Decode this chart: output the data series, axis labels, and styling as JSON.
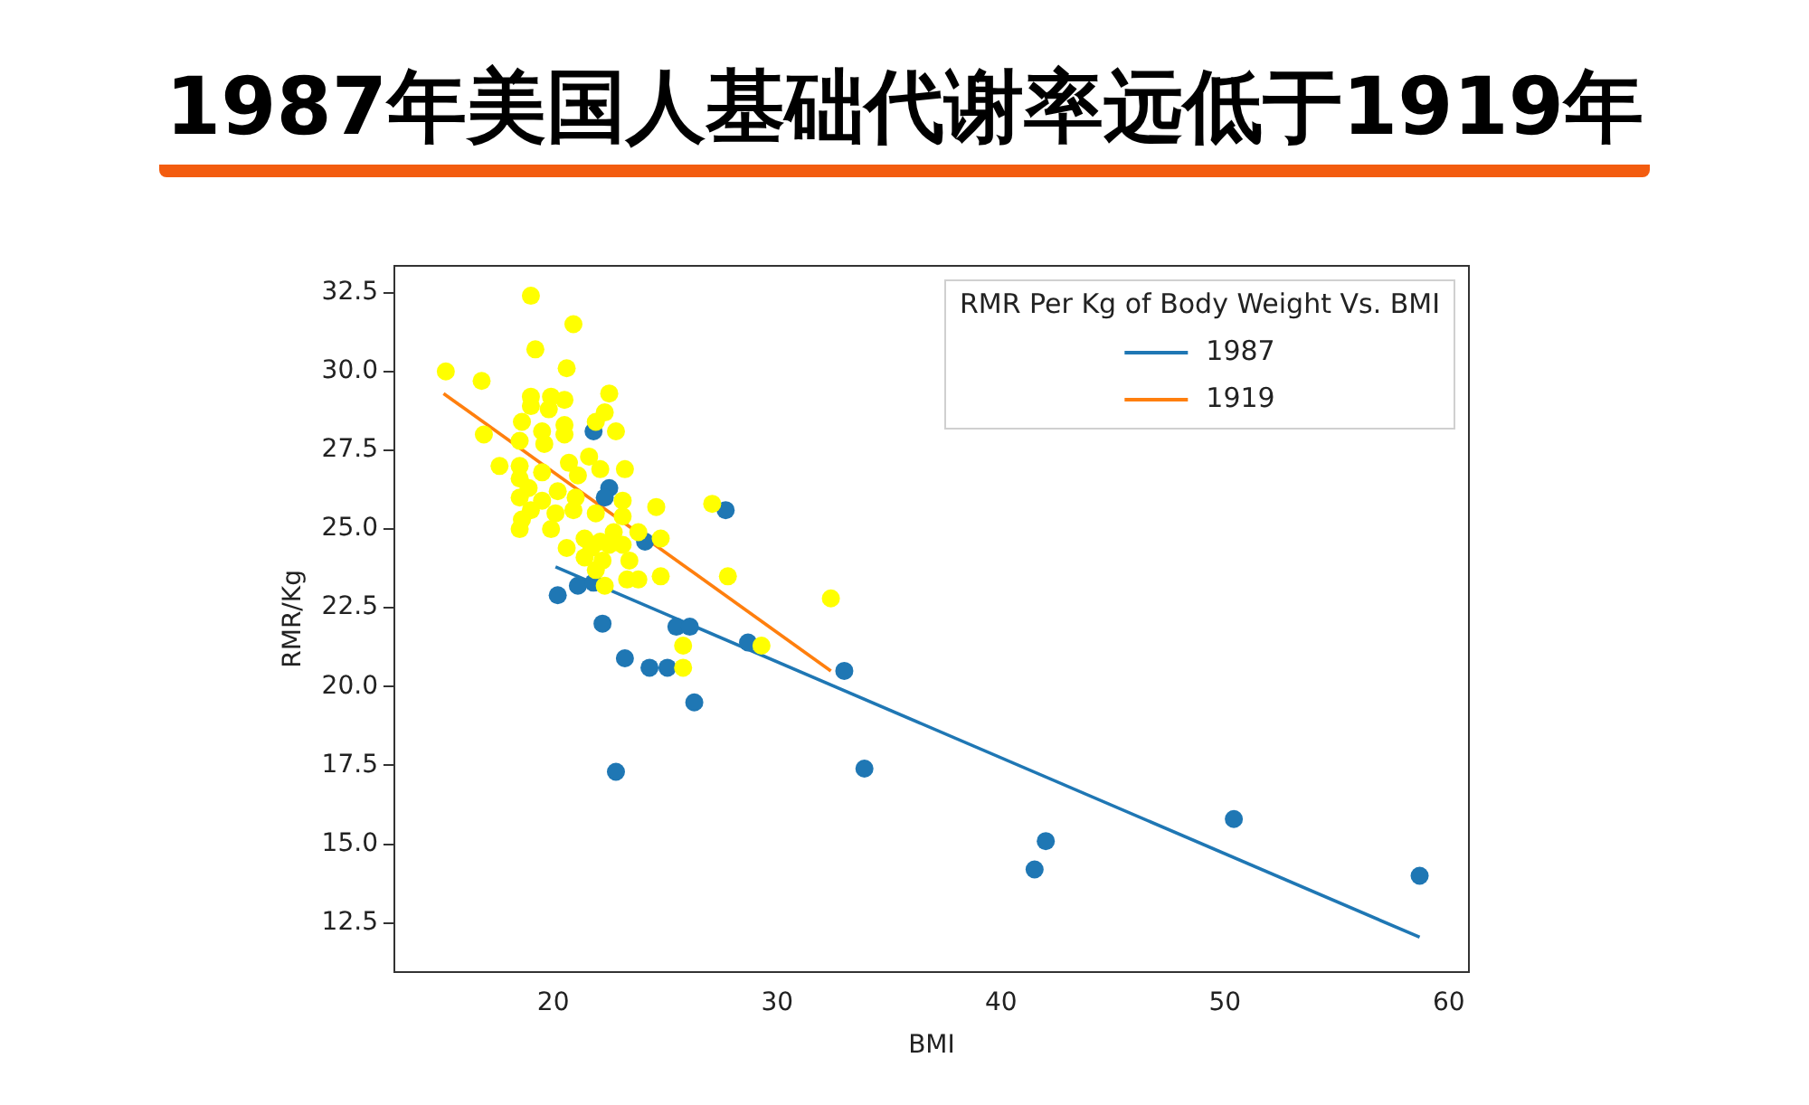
{
  "chart_data": {
    "type": "scatter",
    "title": "1987年美国人基础代谢率远低于1919年",
    "xlabel": "BMI",
    "ylabel": "RMR/Kg",
    "legend_title": "RMR Per Kg of Body Weight Vs. BMI",
    "legend": "top right",
    "grid": false,
    "marker": "circle",
    "xlim": [
      12.9,
      60.9
    ],
    "ylim": [
      10.95,
      33.35
    ],
    "xticks": [
      20,
      30,
      40,
      50,
      60
    ],
    "yticks": [
      {
        "value": 12.5,
        "label": "12.5"
      },
      {
        "value": 15,
        "label": "15.0"
      },
      {
        "value": 17.5,
        "label": "17.5"
      },
      {
        "value": 20,
        "label": "20.0"
      },
      {
        "value": 22.5,
        "label": "22.5"
      },
      {
        "value": 25,
        "label": "25.0"
      },
      {
        "value": 27.5,
        "label": "27.5"
      },
      {
        "value": 30,
        "label": "30.0"
      },
      {
        "value": 32.5,
        "label": "32.5"
      }
    ],
    "series": [
      {
        "color": "#ffff00",
        "x": [
          19.0,
          20.9,
          19.2,
          20.6,
          15.2,
          16.8,
          19.0,
          19.9,
          20.5,
          22.5,
          19.0,
          19.8,
          21.9,
          22.3,
          18.6,
          20.5,
          19.5,
          22.8,
          16.9,
          20.5,
          18.5,
          19.6,
          21.6,
          17.6,
          18.5,
          20.7,
          22.1,
          23.2,
          19.5,
          21.1,
          18.5,
          18.9,
          20.2,
          18.5,
          21.0,
          19.5,
          23.1,
          27.1,
          19.0,
          20.9,
          21.9,
          24.6,
          18.6,
          20.1,
          23.1,
          18.5,
          19.9,
          22.7,
          23.8,
          21.4,
          22.1,
          24.8,
          20.6,
          21.7,
          22.5,
          23.1,
          21.4,
          22.2,
          23.4,
          21.9,
          24.8,
          23.3,
          23.8,
          22.3,
          27.8,
          32.4,
          25.8,
          25.8,
          29.3
        ],
        "values": [
          32.4,
          31.5,
          30.7,
          30.1,
          30.0,
          29.7,
          29.2,
          29.2,
          29.1,
          29.3,
          28.9,
          28.8,
          28.4,
          28.7,
          28.4,
          28.3,
          28.1,
          28.1,
          28.0,
          28.0,
          27.8,
          27.7,
          27.3,
          27.0,
          27.0,
          27.1,
          26.9,
          26.9,
          26.8,
          26.7,
          26.6,
          26.3,
          26.2,
          26.0,
          26.0,
          25.9,
          25.9,
          25.8,
          25.6,
          25.6,
          25.5,
          25.7,
          25.3,
          25.5,
          25.4,
          25.0,
          25.0,
          24.9,
          24.9,
          24.7,
          24.6,
          24.7,
          24.4,
          24.4,
          24.5,
          24.5,
          24.1,
          24.0,
          24.0,
          23.7,
          23.5,
          23.4,
          23.4,
          23.2,
          23.5,
          22.8,
          21.3,
          20.6,
          21.3
        ]
      },
      {
        "color": "#1f77b4",
        "x": [
          20.2,
          21.1,
          21.8,
          22.2,
          23.2,
          24.3,
          25.1,
          25.5,
          26.1,
          26.3,
          22.8,
          28.7,
          33.0,
          33.9,
          21.8,
          22.5,
          22.3,
          27.7,
          24.1,
          41.5,
          42.0,
          50.4,
          58.7
        ],
        "values": [
          22.9,
          23.2,
          23.3,
          22.0,
          20.9,
          20.6,
          20.6,
          21.9,
          21.9,
          19.5,
          17.3,
          21.4,
          20.5,
          17.4,
          28.1,
          26.3,
          26.0,
          25.6,
          24.6,
          14.2,
          15.1,
          15.8,
          14.0
        ]
      },
      {
        "type": "line",
        "marker": "none",
        "name": "1987",
        "color": "#1f77b4",
        "x": [
          20.1,
          58.7
        ],
        "values": [
          23.8,
          12.05
        ]
      },
      {
        "type": "line",
        "marker": "none",
        "name": "1919",
        "color": "#ff7f0e",
        "x": [
          15.1,
          32.4
        ],
        "values": [
          29.3,
          20.5
        ]
      }
    ]
  }
}
